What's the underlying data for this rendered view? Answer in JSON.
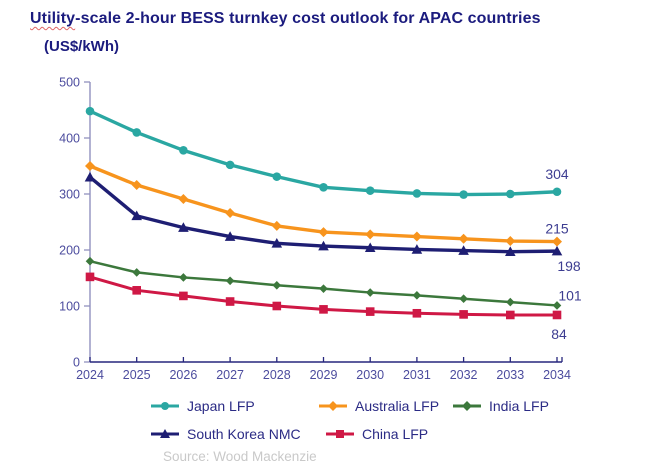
{
  "header": {
    "title_underlined_word": "Utility",
    "title_rest": "-scale 2-hour BESS turnkey cost outlook for APAC countries",
    "subtitle": "(US$/kWh)"
  },
  "chart_data": {
    "type": "line",
    "title": "Utility-scale 2-hour BESS turnkey cost outlook for APAC countries",
    "ylabel": "(US$/kWh)",
    "xlabel": "",
    "x": [
      2024,
      2025,
      2026,
      2027,
      2028,
      2029,
      2030,
      2031,
      2032,
      2033,
      2034
    ],
    "ylim": [
      0,
      500
    ],
    "yticks": [
      0,
      100,
      200,
      300,
      400,
      500
    ],
    "grid": false,
    "legend_position": "bottom",
    "series": [
      {
        "name": "Japan LFP",
        "color": "#2AA7A2",
        "marker": "circle",
        "end_label": "304",
        "values": [
          448,
          410,
          378,
          352,
          331,
          312,
          306,
          301,
          299,
          300,
          304
        ]
      },
      {
        "name": "Australia LFP",
        "color": "#F7941D",
        "marker": "diamond",
        "end_label": "215",
        "values": [
          350,
          316,
          291,
          266,
          243,
          232,
          228,
          224,
          220,
          216,
          215
        ]
      },
      {
        "name": "India LFP",
        "color": "#3C783C",
        "marker": "diamond",
        "end_label": "101",
        "values": [
          180,
          160,
          151,
          145,
          137,
          131,
          124,
          119,
          113,
          107,
          101
        ]
      },
      {
        "name": "South Korea NMC",
        "color": "#1E1E73",
        "marker": "triangle",
        "end_label": "198",
        "values": [
          330,
          261,
          240,
          224,
          212,
          207,
          204,
          201,
          199,
          197,
          198
        ]
      },
      {
        "name": "China LFP",
        "color": "#CF1845",
        "marker": "square",
        "end_label": "84",
        "values": [
          152,
          128,
          118,
          108,
          100,
          94,
          90,
          87,
          85,
          84,
          84
        ]
      }
    ],
    "legend_rows": [
      [
        "Japan LFP",
        "Australia LFP",
        "India LFP"
      ],
      [
        "South Korea NMC",
        "China LFP"
      ]
    ]
  },
  "source": "Source: Wood Mackenzie",
  "colors": {
    "title_text": "#1B1B7E",
    "axis_tick_labels": "#4C4C9E",
    "end_value_labels": "#3D3D91",
    "y_axis_line": "#9191BE",
    "x_axis_line": "#26267D",
    "source_text": "#C9C9C9",
    "spellcheck_underline": "#E06666"
  }
}
